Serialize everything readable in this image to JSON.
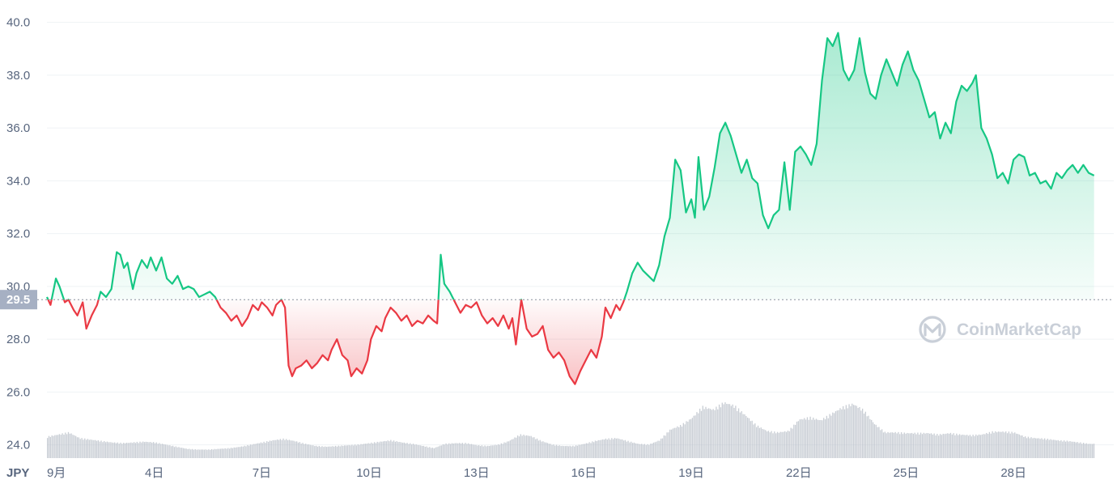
{
  "chart_data": {
    "type": "area",
    "currency": "JPY",
    "baseline": 29.5,
    "baseline_label": "29.5",
    "ylim": [
      23.5,
      40.6
    ],
    "y_ticks": [
      24.0,
      26.0,
      28.0,
      30.0,
      32.0,
      34.0,
      36.0,
      38.0,
      40.0
    ],
    "y_tick_labels": [
      "24.0",
      "26.0",
      "28.0",
      "30.0",
      "32.0",
      "34.0",
      "36.0",
      "38.0",
      "40.0"
    ],
    "xlim": [
      1,
      30.8
    ],
    "x_ticks": [
      {
        "x": 1,
        "label": "9月"
      },
      {
        "x": 4,
        "label": "4日"
      },
      {
        "x": 7,
        "label": "7日"
      },
      {
        "x": 10,
        "label": "10日"
      },
      {
        "x": 13,
        "label": "13日"
      },
      {
        "x": 16,
        "label": "16日"
      },
      {
        "x": 19,
        "label": "19日"
      },
      {
        "x": 22,
        "label": "22日"
      },
      {
        "x": 25,
        "label": "25日"
      },
      {
        "x": 28,
        "label": "28日"
      }
    ],
    "x_unit": "day of September",
    "y_unit": "JPY",
    "up_color": "#16c784",
    "down_color": "#ea3943",
    "volume_color": "#b6bcc6",
    "price": [
      [
        1.0,
        29.6
      ],
      [
        1.1,
        29.3
      ],
      [
        1.25,
        30.3
      ],
      [
        1.35,
        30.0
      ],
      [
        1.5,
        29.4
      ],
      [
        1.6,
        29.5
      ],
      [
        1.75,
        29.1
      ],
      [
        1.85,
        28.9
      ],
      [
        2.0,
        29.4
      ],
      [
        2.1,
        28.4
      ],
      [
        2.25,
        28.9
      ],
      [
        2.4,
        29.3
      ],
      [
        2.5,
        29.8
      ],
      [
        2.65,
        29.6
      ],
      [
        2.8,
        29.9
      ],
      [
        2.95,
        31.3
      ],
      [
        3.05,
        31.2
      ],
      [
        3.15,
        30.7
      ],
      [
        3.25,
        30.9
      ],
      [
        3.4,
        29.9
      ],
      [
        3.5,
        30.5
      ],
      [
        3.65,
        31.0
      ],
      [
        3.8,
        30.7
      ],
      [
        3.9,
        31.1
      ],
      [
        4.05,
        30.6
      ],
      [
        4.2,
        31.1
      ],
      [
        4.35,
        30.3
      ],
      [
        4.5,
        30.1
      ],
      [
        4.65,
        30.4
      ],
      [
        4.8,
        29.9
      ],
      [
        4.95,
        30.0
      ],
      [
        5.1,
        29.9
      ],
      [
        5.25,
        29.6
      ],
      [
        5.4,
        29.7
      ],
      [
        5.55,
        29.8
      ],
      [
        5.7,
        29.6
      ],
      [
        5.85,
        29.2
      ],
      [
        6.0,
        29.0
      ],
      [
        6.15,
        28.7
      ],
      [
        6.3,
        28.9
      ],
      [
        6.45,
        28.5
      ],
      [
        6.6,
        28.8
      ],
      [
        6.75,
        29.3
      ],
      [
        6.9,
        29.1
      ],
      [
        7.0,
        29.4
      ],
      [
        7.15,
        29.2
      ],
      [
        7.3,
        28.9
      ],
      [
        7.4,
        29.3
      ],
      [
        7.55,
        29.5
      ],
      [
        7.65,
        29.2
      ],
      [
        7.75,
        27.0
      ],
      [
        7.85,
        26.6
      ],
      [
        7.95,
        26.9
      ],
      [
        8.1,
        27.0
      ],
      [
        8.25,
        27.2
      ],
      [
        8.4,
        26.9
      ],
      [
        8.55,
        27.1
      ],
      [
        8.7,
        27.4
      ],
      [
        8.85,
        27.2
      ],
      [
        8.95,
        27.6
      ],
      [
        9.1,
        28.0
      ],
      [
        9.25,
        27.4
      ],
      [
        9.4,
        27.2
      ],
      [
        9.5,
        26.6
      ],
      [
        9.65,
        26.9
      ],
      [
        9.8,
        26.7
      ],
      [
        9.95,
        27.2
      ],
      [
        10.05,
        28.0
      ],
      [
        10.2,
        28.5
      ],
      [
        10.35,
        28.3
      ],
      [
        10.45,
        28.8
      ],
      [
        10.6,
        29.2
      ],
      [
        10.75,
        29.0
      ],
      [
        10.9,
        28.7
      ],
      [
        11.05,
        28.9
      ],
      [
        11.2,
        28.5
      ],
      [
        11.35,
        28.7
      ],
      [
        11.5,
        28.6
      ],
      [
        11.65,
        28.9
      ],
      [
        11.8,
        28.7
      ],
      [
        11.9,
        28.6
      ],
      [
        12.0,
        31.2
      ],
      [
        12.1,
        30.1
      ],
      [
        12.25,
        29.8
      ],
      [
        12.4,
        29.4
      ],
      [
        12.55,
        29.0
      ],
      [
        12.7,
        29.3
      ],
      [
        12.85,
        29.2
      ],
      [
        13.0,
        29.4
      ],
      [
        13.15,
        28.9
      ],
      [
        13.3,
        28.6
      ],
      [
        13.45,
        28.8
      ],
      [
        13.6,
        28.5
      ],
      [
        13.75,
        28.9
      ],
      [
        13.9,
        28.4
      ],
      [
        14.0,
        28.8
      ],
      [
        14.1,
        27.8
      ],
      [
        14.25,
        29.5
      ],
      [
        14.4,
        28.4
      ],
      [
        14.55,
        28.1
      ],
      [
        14.7,
        28.2
      ],
      [
        14.85,
        28.5
      ],
      [
        15.0,
        27.6
      ],
      [
        15.15,
        27.3
      ],
      [
        15.3,
        27.5
      ],
      [
        15.45,
        27.2
      ],
      [
        15.6,
        26.6
      ],
      [
        15.75,
        26.3
      ],
      [
        15.9,
        26.8
      ],
      [
        16.05,
        27.2
      ],
      [
        16.2,
        27.6
      ],
      [
        16.35,
        27.3
      ],
      [
        16.5,
        28.1
      ],
      [
        16.6,
        29.2
      ],
      [
        16.75,
        28.8
      ],
      [
        16.9,
        29.3
      ],
      [
        17.0,
        29.1
      ],
      [
        17.1,
        29.4
      ],
      [
        17.2,
        29.8
      ],
      [
        17.35,
        30.5
      ],
      [
        17.5,
        30.9
      ],
      [
        17.65,
        30.6
      ],
      [
        17.8,
        30.4
      ],
      [
        17.95,
        30.2
      ],
      [
        18.1,
        30.8
      ],
      [
        18.25,
        31.9
      ],
      [
        18.4,
        32.6
      ],
      [
        18.55,
        34.8
      ],
      [
        18.7,
        34.4
      ],
      [
        18.85,
        32.8
      ],
      [
        19.0,
        33.3
      ],
      [
        19.1,
        32.6
      ],
      [
        19.2,
        34.9
      ],
      [
        19.35,
        32.9
      ],
      [
        19.5,
        33.4
      ],
      [
        19.65,
        34.5
      ],
      [
        19.8,
        35.8
      ],
      [
        19.95,
        36.2
      ],
      [
        20.1,
        35.7
      ],
      [
        20.25,
        35.0
      ],
      [
        20.4,
        34.3
      ],
      [
        20.55,
        34.8
      ],
      [
        20.7,
        34.1
      ],
      [
        20.85,
        33.9
      ],
      [
        21.0,
        32.7
      ],
      [
        21.15,
        32.2
      ],
      [
        21.3,
        32.7
      ],
      [
        21.45,
        32.9
      ],
      [
        21.6,
        34.7
      ],
      [
        21.75,
        32.9
      ],
      [
        21.9,
        35.1
      ],
      [
        22.05,
        35.3
      ],
      [
        22.2,
        35.0
      ],
      [
        22.35,
        34.6
      ],
      [
        22.5,
        35.4
      ],
      [
        22.65,
        37.8
      ],
      [
        22.8,
        39.4
      ],
      [
        22.95,
        39.1
      ],
      [
        23.1,
        39.6
      ],
      [
        23.25,
        38.2
      ],
      [
        23.4,
        37.8
      ],
      [
        23.55,
        38.2
      ],
      [
        23.7,
        39.4
      ],
      [
        23.85,
        38.1
      ],
      [
        24.0,
        37.3
      ],
      [
        24.15,
        37.1
      ],
      [
        24.3,
        38.0
      ],
      [
        24.45,
        38.6
      ],
      [
        24.6,
        38.1
      ],
      [
        24.75,
        37.6
      ],
      [
        24.9,
        38.4
      ],
      [
        25.05,
        38.9
      ],
      [
        25.2,
        38.2
      ],
      [
        25.35,
        37.8
      ],
      [
        25.5,
        37.1
      ],
      [
        25.65,
        36.4
      ],
      [
        25.8,
        36.6
      ],
      [
        25.95,
        35.6
      ],
      [
        26.1,
        36.2
      ],
      [
        26.25,
        35.8
      ],
      [
        26.4,
        37.0
      ],
      [
        26.55,
        37.6
      ],
      [
        26.7,
        37.4
      ],
      [
        26.85,
        37.7
      ],
      [
        26.95,
        38.0
      ],
      [
        27.1,
        36.0
      ],
      [
        27.25,
        35.6
      ],
      [
        27.4,
        35.0
      ],
      [
        27.55,
        34.1
      ],
      [
        27.7,
        34.3
      ],
      [
        27.85,
        33.9
      ],
      [
        28.0,
        34.8
      ],
      [
        28.15,
        35.0
      ],
      [
        28.3,
        34.9
      ],
      [
        28.45,
        34.2
      ],
      [
        28.6,
        34.3
      ],
      [
        28.75,
        33.9
      ],
      [
        28.9,
        34.0
      ],
      [
        29.05,
        33.7
      ],
      [
        29.2,
        34.3
      ],
      [
        29.35,
        34.1
      ],
      [
        29.5,
        34.4
      ],
      [
        29.65,
        34.6
      ],
      [
        29.8,
        34.3
      ],
      [
        29.95,
        34.6
      ],
      [
        30.1,
        34.3
      ],
      [
        30.25,
        34.2
      ]
    ],
    "volume": [
      [
        1.0,
        0.3
      ],
      [
        1.3,
        0.33
      ],
      [
        1.6,
        0.36
      ],
      [
        1.9,
        0.28
      ],
      [
        2.2,
        0.26
      ],
      [
        2.5,
        0.24
      ],
      [
        2.8,
        0.22
      ],
      [
        3.1,
        0.21
      ],
      [
        3.4,
        0.22
      ],
      [
        3.7,
        0.23
      ],
      [
        4.0,
        0.22
      ],
      [
        4.3,
        0.19
      ],
      [
        4.6,
        0.16
      ],
      [
        4.9,
        0.13
      ],
      [
        5.2,
        0.12
      ],
      [
        5.5,
        0.12
      ],
      [
        5.8,
        0.13
      ],
      [
        6.1,
        0.14
      ],
      [
        6.4,
        0.16
      ],
      [
        6.7,
        0.19
      ],
      [
        7.0,
        0.22
      ],
      [
        7.3,
        0.25
      ],
      [
        7.6,
        0.27
      ],
      [
        7.9,
        0.24
      ],
      [
        8.2,
        0.2
      ],
      [
        8.5,
        0.17
      ],
      [
        8.8,
        0.16
      ],
      [
        9.1,
        0.17
      ],
      [
        9.4,
        0.18
      ],
      [
        9.7,
        0.19
      ],
      [
        10.0,
        0.21
      ],
      [
        10.3,
        0.23
      ],
      [
        10.6,
        0.25
      ],
      [
        10.9,
        0.22
      ],
      [
        11.2,
        0.2
      ],
      [
        11.5,
        0.17
      ],
      [
        11.8,
        0.14
      ],
      [
        12.1,
        0.2
      ],
      [
        12.4,
        0.21
      ],
      [
        12.7,
        0.21
      ],
      [
        13.0,
        0.18
      ],
      [
        13.3,
        0.17
      ],
      [
        13.6,
        0.19
      ],
      [
        13.9,
        0.24
      ],
      [
        14.2,
        0.33
      ],
      [
        14.5,
        0.31
      ],
      [
        14.8,
        0.24
      ],
      [
        15.1,
        0.19
      ],
      [
        15.4,
        0.17
      ],
      [
        15.7,
        0.17
      ],
      [
        16.0,
        0.2
      ],
      [
        16.3,
        0.24
      ],
      [
        16.6,
        0.27
      ],
      [
        16.9,
        0.28
      ],
      [
        17.2,
        0.24
      ],
      [
        17.5,
        0.2
      ],
      [
        17.8,
        0.19
      ],
      [
        18.1,
        0.25
      ],
      [
        18.4,
        0.4
      ],
      [
        18.7,
        0.46
      ],
      [
        19.0,
        0.56
      ],
      [
        19.3,
        0.72
      ],
      [
        19.6,
        0.68
      ],
      [
        19.9,
        0.78
      ],
      [
        20.2,
        0.73
      ],
      [
        20.5,
        0.6
      ],
      [
        20.8,
        0.46
      ],
      [
        21.1,
        0.38
      ],
      [
        21.4,
        0.36
      ],
      [
        21.7,
        0.38
      ],
      [
        22.0,
        0.54
      ],
      [
        22.3,
        0.57
      ],
      [
        22.6,
        0.53
      ],
      [
        22.9,
        0.62
      ],
      [
        23.2,
        0.71
      ],
      [
        23.5,
        0.76
      ],
      [
        23.8,
        0.67
      ],
      [
        24.1,
        0.48
      ],
      [
        24.4,
        0.36
      ],
      [
        24.7,
        0.36
      ],
      [
        25.0,
        0.35
      ],
      [
        25.3,
        0.35
      ],
      [
        25.6,
        0.35
      ],
      [
        25.9,
        0.33
      ],
      [
        26.2,
        0.35
      ],
      [
        26.5,
        0.33
      ],
      [
        26.8,
        0.32
      ],
      [
        27.1,
        0.33
      ],
      [
        27.4,
        0.37
      ],
      [
        27.7,
        0.37
      ],
      [
        28.0,
        0.36
      ],
      [
        28.3,
        0.3
      ],
      [
        28.6,
        0.28
      ],
      [
        28.9,
        0.27
      ],
      [
        29.2,
        0.25
      ],
      [
        29.5,
        0.24
      ],
      [
        29.8,
        0.22
      ],
      [
        30.1,
        0.2
      ],
      [
        30.25,
        0.2
      ]
    ]
  },
  "watermark": {
    "text": "CoinMarketCap",
    "icon": "coinmarketcap-logo-icon"
  }
}
